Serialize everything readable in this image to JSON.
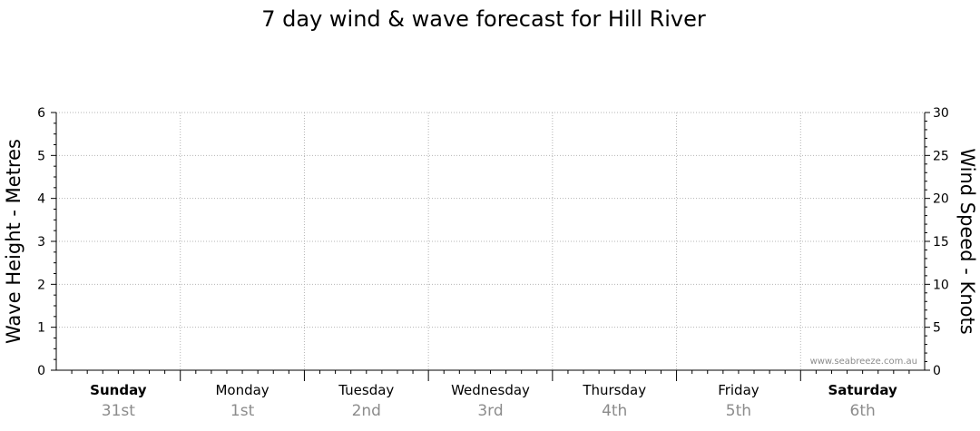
{
  "chart_data": {
    "type": "line",
    "title": "7 day wind & wave forecast for Hill River",
    "y_left": {
      "label": "Wave Height - Metres",
      "range": [
        0,
        6
      ],
      "ticks": [
        0,
        1,
        2,
        3,
        4,
        5,
        6
      ]
    },
    "y_right": {
      "label": "Wind Speed - Knots",
      "range": [
        0,
        30
      ],
      "ticks": [
        0,
        5,
        10,
        15,
        20,
        25,
        30
      ]
    },
    "days": [
      {
        "name": "Sunday",
        "date": "31st",
        "bold": true
      },
      {
        "name": "Monday",
        "date": "1st",
        "bold": false
      },
      {
        "name": "Tuesday",
        "date": "2nd",
        "bold": false
      },
      {
        "name": "Wednesday",
        "date": "3rd",
        "bold": false
      },
      {
        "name": "Thursday",
        "date": "4th",
        "bold": false
      },
      {
        "name": "Friday",
        "date": "5th",
        "bold": false
      },
      {
        "name": "Saturday",
        "date": "6th",
        "bold": true
      }
    ],
    "series": [],
    "grid": true,
    "watermark": "www.seabreeze.com.au"
  }
}
